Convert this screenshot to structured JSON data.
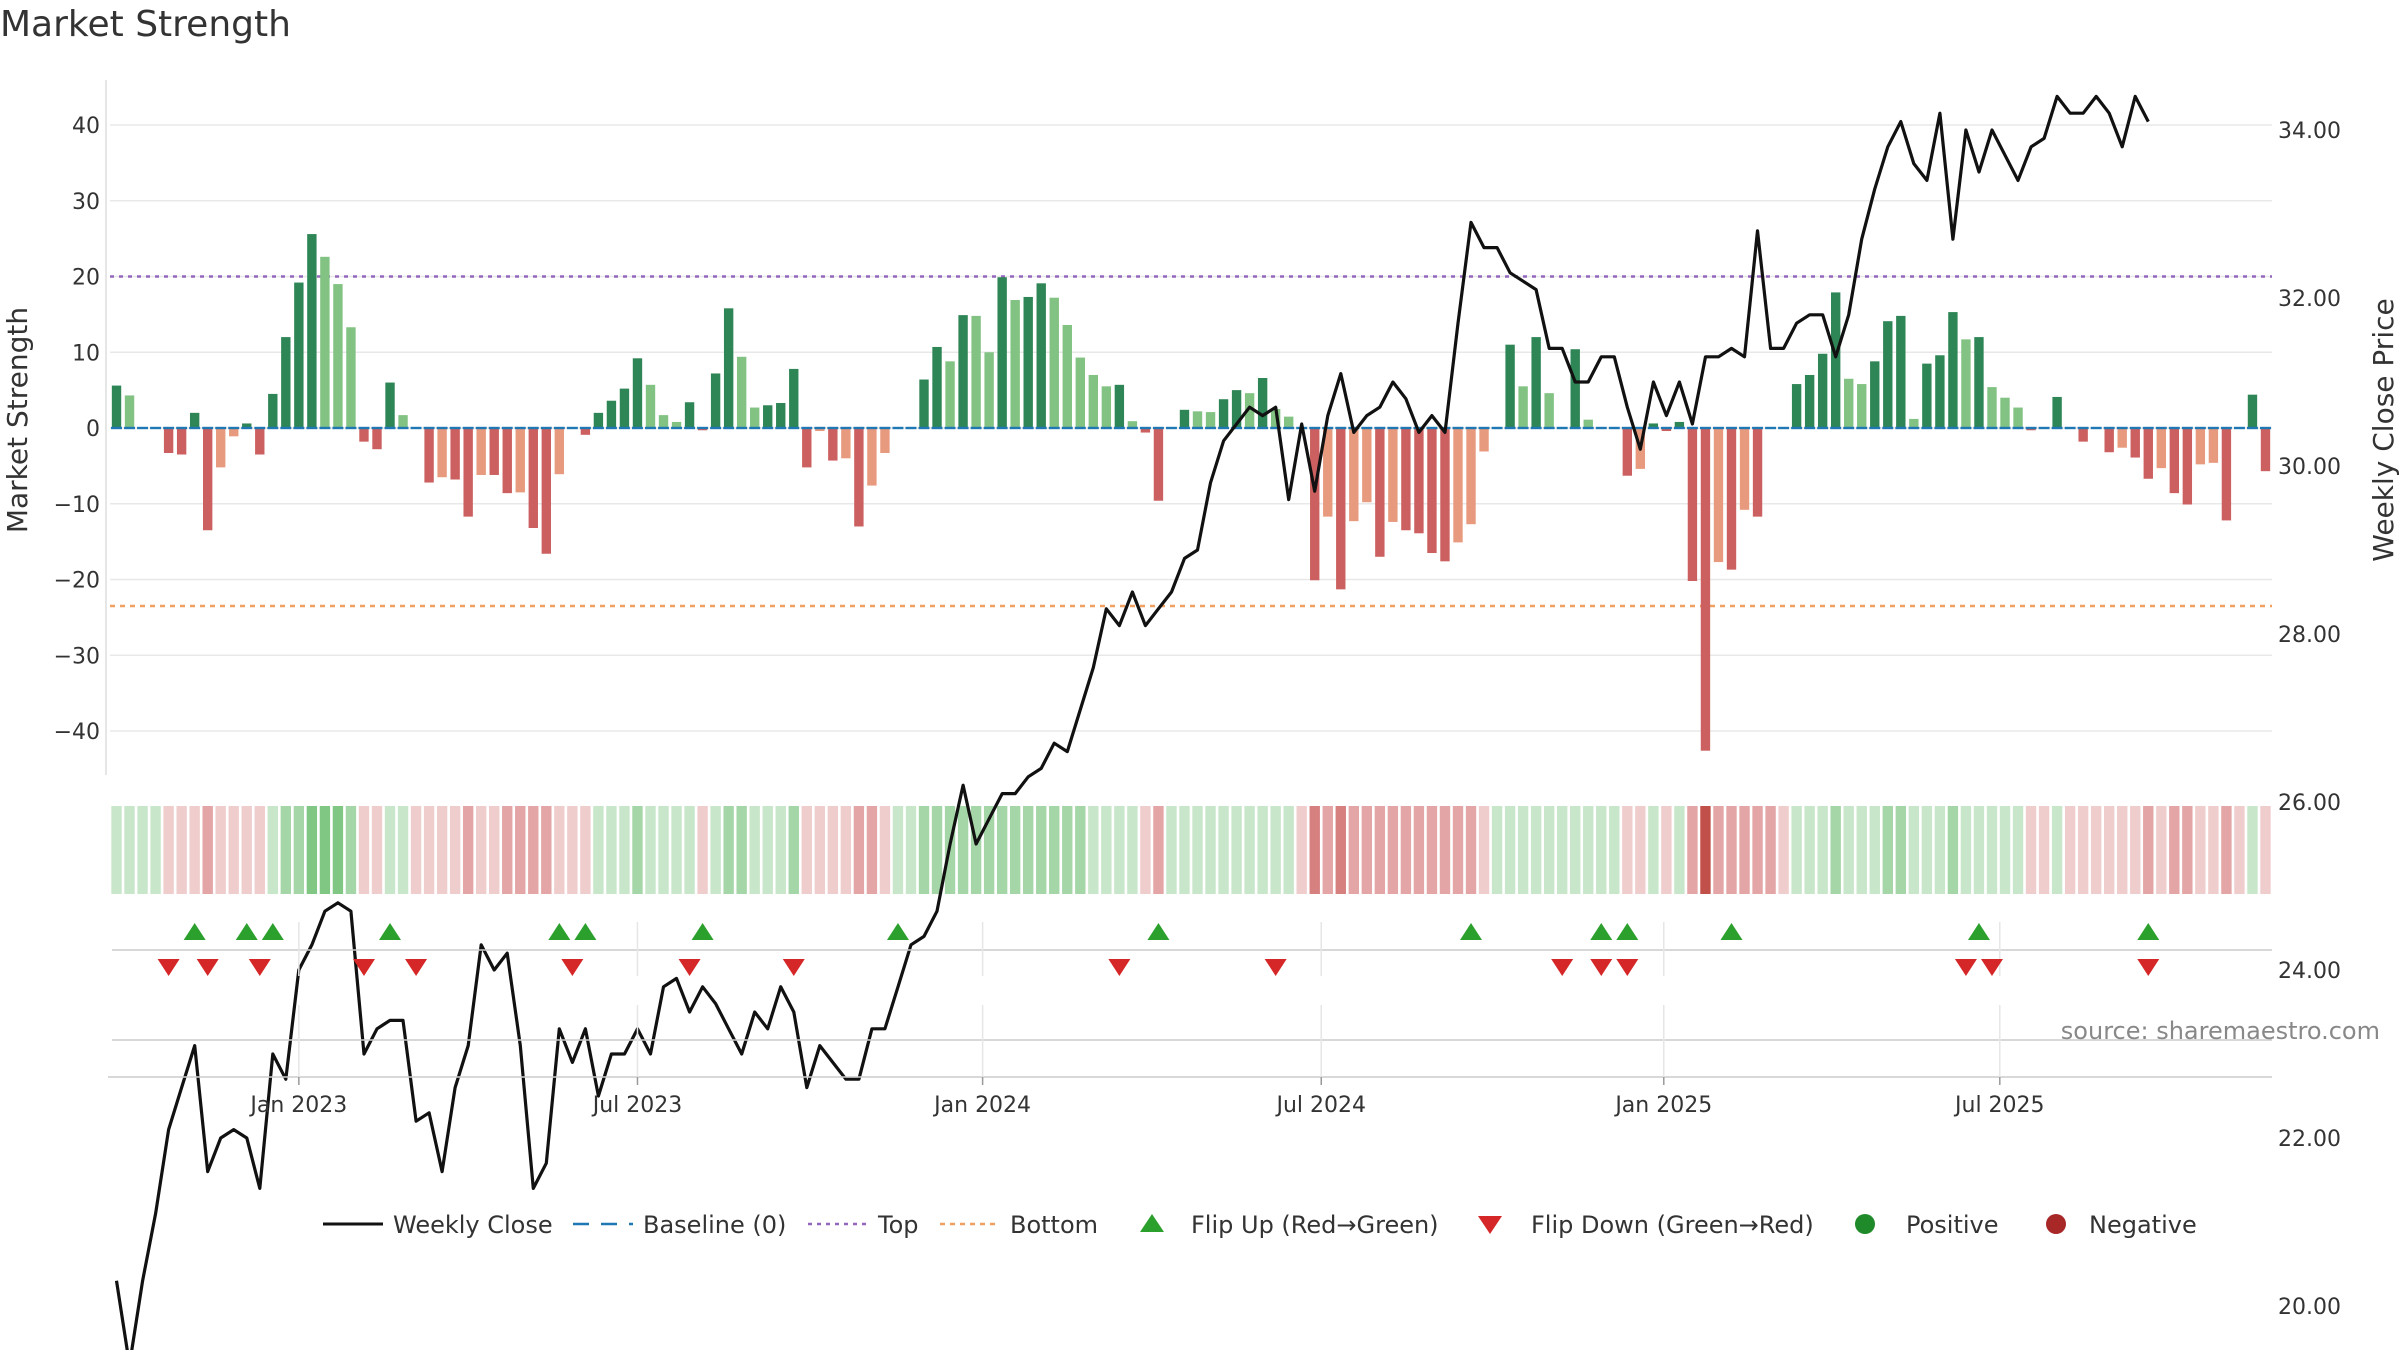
{
  "chart_data": {
    "type": "bar",
    "title": "Market Strength",
    "ylabel_left": "Market Strength",
    "ylabel_right": "Weekly Close Price",
    "source": "source: sharemaestro.com",
    "y_left_ticks": [
      40,
      30,
      20,
      10,
      0,
      -10,
      -20,
      -30,
      -40
    ],
    "y_left_tick_labels": [
      "40",
      "30",
      "20",
      "10",
      "0",
      "−10",
      "−20",
      "−30",
      "−40"
    ],
    "y_left_range": [
      -45,
      46
    ],
    "y_right_ticks": [
      34,
      32,
      30,
      28,
      26,
      24,
      22,
      20
    ],
    "y_right_tick_labels": [
      "34.00",
      "32.00",
      "30.00",
      "28.00",
      "26.00",
      "24.00",
      "22.00",
      "20.00"
    ],
    "y_right_range": [
      18.8,
      34.9
    ],
    "top_line": 20,
    "bottom_line": -23.5,
    "x_ticks": [
      {
        "label": "Jan 2023",
        "week": 14
      },
      {
        "label": "Jul 2023",
        "week": 40
      },
      {
        "label": "Jan 2024",
        "week": 66.5
      },
      {
        "label": "Jul 2024",
        "week": 92.5
      },
      {
        "label": "Jan 2025",
        "week": 118.8
      },
      {
        "label": "Jul 2025",
        "week": 144.6
      }
    ],
    "strength": [
      5.6,
      4.3,
      0,
      0,
      -3.3,
      -3.5,
      2,
      -13.5,
      -5.2,
      -1.1,
      0.6,
      -3.5,
      4.5,
      12,
      19.2,
      25.6,
      22.6,
      19,
      13.3,
      -1.8,
      -2.8,
      6,
      1.7,
      0,
      -7.2,
      -6.5,
      -6.8,
      -11.7,
      -6.2,
      -6.2,
      -8.6,
      -8.5,
      -13.2,
      -16.6,
      -6.1,
      0,
      -0.9,
      2,
      3.6,
      5.2,
      9.2,
      5.7,
      1.7,
      0.8,
      3.4,
      -0.3,
      7.2,
      15.8,
      9.4,
      2.7,
      3,
      3.3,
      7.8,
      -5.2,
      -0.4,
      -4.3,
      -4,
      -13,
      -7.6,
      -3.3,
      0,
      0,
      6.4,
      10.7,
      8.8,
      14.9,
      14.8,
      10,
      19.9,
      16.9,
      17.3,
      19.1,
      17.2,
      13.6,
      9.3,
      7,
      5.5,
      5.7,
      0.9,
      -0.6,
      -9.6,
      0,
      2.4,
      2.2,
      2.1,
      3.8,
      5,
      4.6,
      6.6,
      2.5,
      1.5,
      0,
      -20.1,
      -11.7,
      -21.3,
      -12.3,
      -9.8,
      -17,
      -12.4,
      -13.5,
      -13.9,
      -16.5,
      -17.6,
      -15.1,
      -12.7,
      -3.1,
      0,
      11,
      5.5,
      12,
      4.6,
      0,
      10.4,
      1.1,
      0,
      0,
      -6.3,
      -5.4,
      0.6,
      -0.4,
      0.8,
      -20.2,
      -42.6,
      -17.7,
      -18.7,
      -10.8,
      -11.7,
      0,
      0,
      5.8,
      7,
      9.8,
      17.9,
      6.5,
      5.8,
      8.8,
      14.1,
      14.8,
      1.2,
      8.5,
      9.6,
      15.3,
      11.7,
      12,
      5.4,
      4,
      2.7,
      -0.3,
      0,
      4.1,
      0,
      -1.8,
      0,
      -3.2,
      -2.6,
      -3.9,
      -6.7,
      -5.3,
      -8.6,
      -10.1,
      -4.8,
      -4.6,
      -12.2,
      0,
      4.4,
      -5.7
    ],
    "weekly_close": [
      20.3,
      19.3,
      20.3,
      21.1,
      22.1,
      22.6,
      23.1,
      21.6,
      22.0,
      22.1,
      22.0,
      21.4,
      23.0,
      22.7,
      24.0,
      24.3,
      24.7,
      24.8,
      24.7,
      23.0,
      23.3,
      23.4,
      23.4,
      22.2,
      22.3,
      21.6,
      22.6,
      23.1,
      24.3,
      24.0,
      24.2,
      23.1,
      21.4,
      21.7,
      23.3,
      22.9,
      23.3,
      22.5,
      23.0,
      23.0,
      23.3,
      23.0,
      23.8,
      23.9,
      23.5,
      23.8,
      23.6,
      23.3,
      23.0,
      23.5,
      23.3,
      23.8,
      23.5,
      22.6,
      23.1,
      22.9,
      22.7,
      22.7,
      23.3,
      23.3,
      23.8,
      24.3,
      24.4,
      24.7,
      25.5,
      26.2,
      25.5,
      25.8,
      26.1,
      26.1,
      26.3,
      26.4,
      26.7,
      26.6,
      27.1,
      27.6,
      28.3,
      28.1,
      28.5,
      28.1,
      28.3,
      28.5,
      28.9,
      29.0,
      29.8,
      30.3,
      30.5,
      30.7,
      30.6,
      30.7,
      29.6,
      30.5,
      29.7,
      30.6,
      31.1,
      30.4,
      30.6,
      30.7,
      31.0,
      30.8,
      30.4,
      30.6,
      30.4,
      31.7,
      32.9,
      32.6,
      32.6,
      32.3,
      32.2,
      32.1,
      31.4,
      31.4,
      31.0,
      31.0,
      31.3,
      31.3,
      30.7,
      30.2,
      31.0,
      30.6,
      31.0,
      30.5,
      31.3,
      31.3,
      31.4,
      31.3,
      32.8,
      31.4,
      31.4,
      31.7,
      31.8,
      31.8,
      31.3,
      31.8,
      32.7,
      33.3,
      33.8,
      34.1,
      33.6,
      33.4,
      34.2,
      32.7,
      34.0,
      33.5,
      34.0,
      33.7,
      33.4,
      33.8,
      33.9,
      34.4,
      34.2,
      34.2,
      34.4,
      34.2,
      33.8,
      34.4,
      34.1
    ],
    "regime": [
      1,
      1,
      1,
      1,
      -1,
      -1,
      -1,
      -2,
      -1,
      -1,
      -1,
      -1,
      1,
      2,
      2,
      3,
      3,
      3,
      2,
      -1,
      -1,
      1,
      1,
      -1,
      -1,
      -1,
      -1,
      -2,
      -1,
      -1,
      -2,
      -2,
      -2,
      -2,
      -1,
      -1,
      -1,
      1,
      1,
      1,
      2,
      1,
      1,
      1,
      1,
      -1,
      1,
      2,
      2,
      1,
      1,
      1,
      2,
      -1,
      -1,
      -1,
      -1,
      -2,
      -2,
      -1,
      1,
      1,
      2,
      2,
      2,
      2,
      2,
      2,
      2,
      2,
      2,
      2,
      2,
      2,
      2,
      1,
      1,
      1,
      1,
      -1,
      -2,
      1,
      1,
      1,
      1,
      1,
      1,
      1,
      1,
      1,
      1,
      -1,
      -3,
      -2,
      -3,
      -2,
      -2,
      -2,
      -2,
      -2,
      -2,
      -2,
      -2,
      -2,
      -2,
      -1,
      1,
      1,
      1,
      1,
      1,
      1,
      1,
      1,
      1,
      1,
      -1,
      -1,
      1,
      -1,
      1,
      -2,
      -4,
      -2,
      -2,
      -2,
      -2,
      -2,
      -1,
      1,
      1,
      1,
      2,
      1,
      1,
      1,
      2,
      2,
      1,
      1,
      1,
      2,
      1,
      1,
      1,
      1,
      1,
      -1,
      -1,
      1,
      -1,
      -1,
      -1,
      -1,
      -1,
      -1,
      -2,
      -1,
      -2,
      -2,
      -1,
      -1,
      -2,
      -1,
      1,
      -1
    ],
    "flip_up_weeks": [
      6,
      10,
      12,
      21,
      34,
      36,
      45,
      60,
      80,
      104,
      114,
      116,
      124,
      143,
      156
    ],
    "flip_down_weeks": [
      4,
      7,
      11,
      19,
      23,
      35,
      44,
      52,
      77,
      89,
      111,
      114,
      116,
      142,
      144,
      156
    ],
    "legend": [
      {
        "key": "close",
        "label": "Weekly Close"
      },
      {
        "key": "baseline",
        "label": "Baseline (0)"
      },
      {
        "key": "top",
        "label": "Top"
      },
      {
        "key": "bottom",
        "label": "Bottom"
      },
      {
        "key": "flipup",
        "label": "Flip Up (Red→Green)"
      },
      {
        "key": "flipdown",
        "label": "Flip Down (Green→Red)"
      },
      {
        "key": "positive",
        "label": "Positive"
      },
      {
        "key": "negative",
        "label": "Negative"
      }
    ],
    "colors": {
      "pos_dark": "#2e8555",
      "pos_light": "#82c282",
      "neg_dark": "#cc5f5f",
      "neg_light": "#e89a7e",
      "close": "#111111",
      "baseline": "#1f77b4",
      "top": "#9467bd",
      "bottom": "#f0a060",
      "flip_up": "#2ca02c",
      "flip_down": "#d62728",
      "positive": "#1e8a2a",
      "negative": "#a82828",
      "band_pos": [
        "#c8e6c9",
        "#a5d6a7",
        "#81c784"
      ],
      "band_neg": [
        "#f0cdcd",
        "#e3a5a5",
        "#d68080",
        "#c2504a"
      ]
    }
  }
}
